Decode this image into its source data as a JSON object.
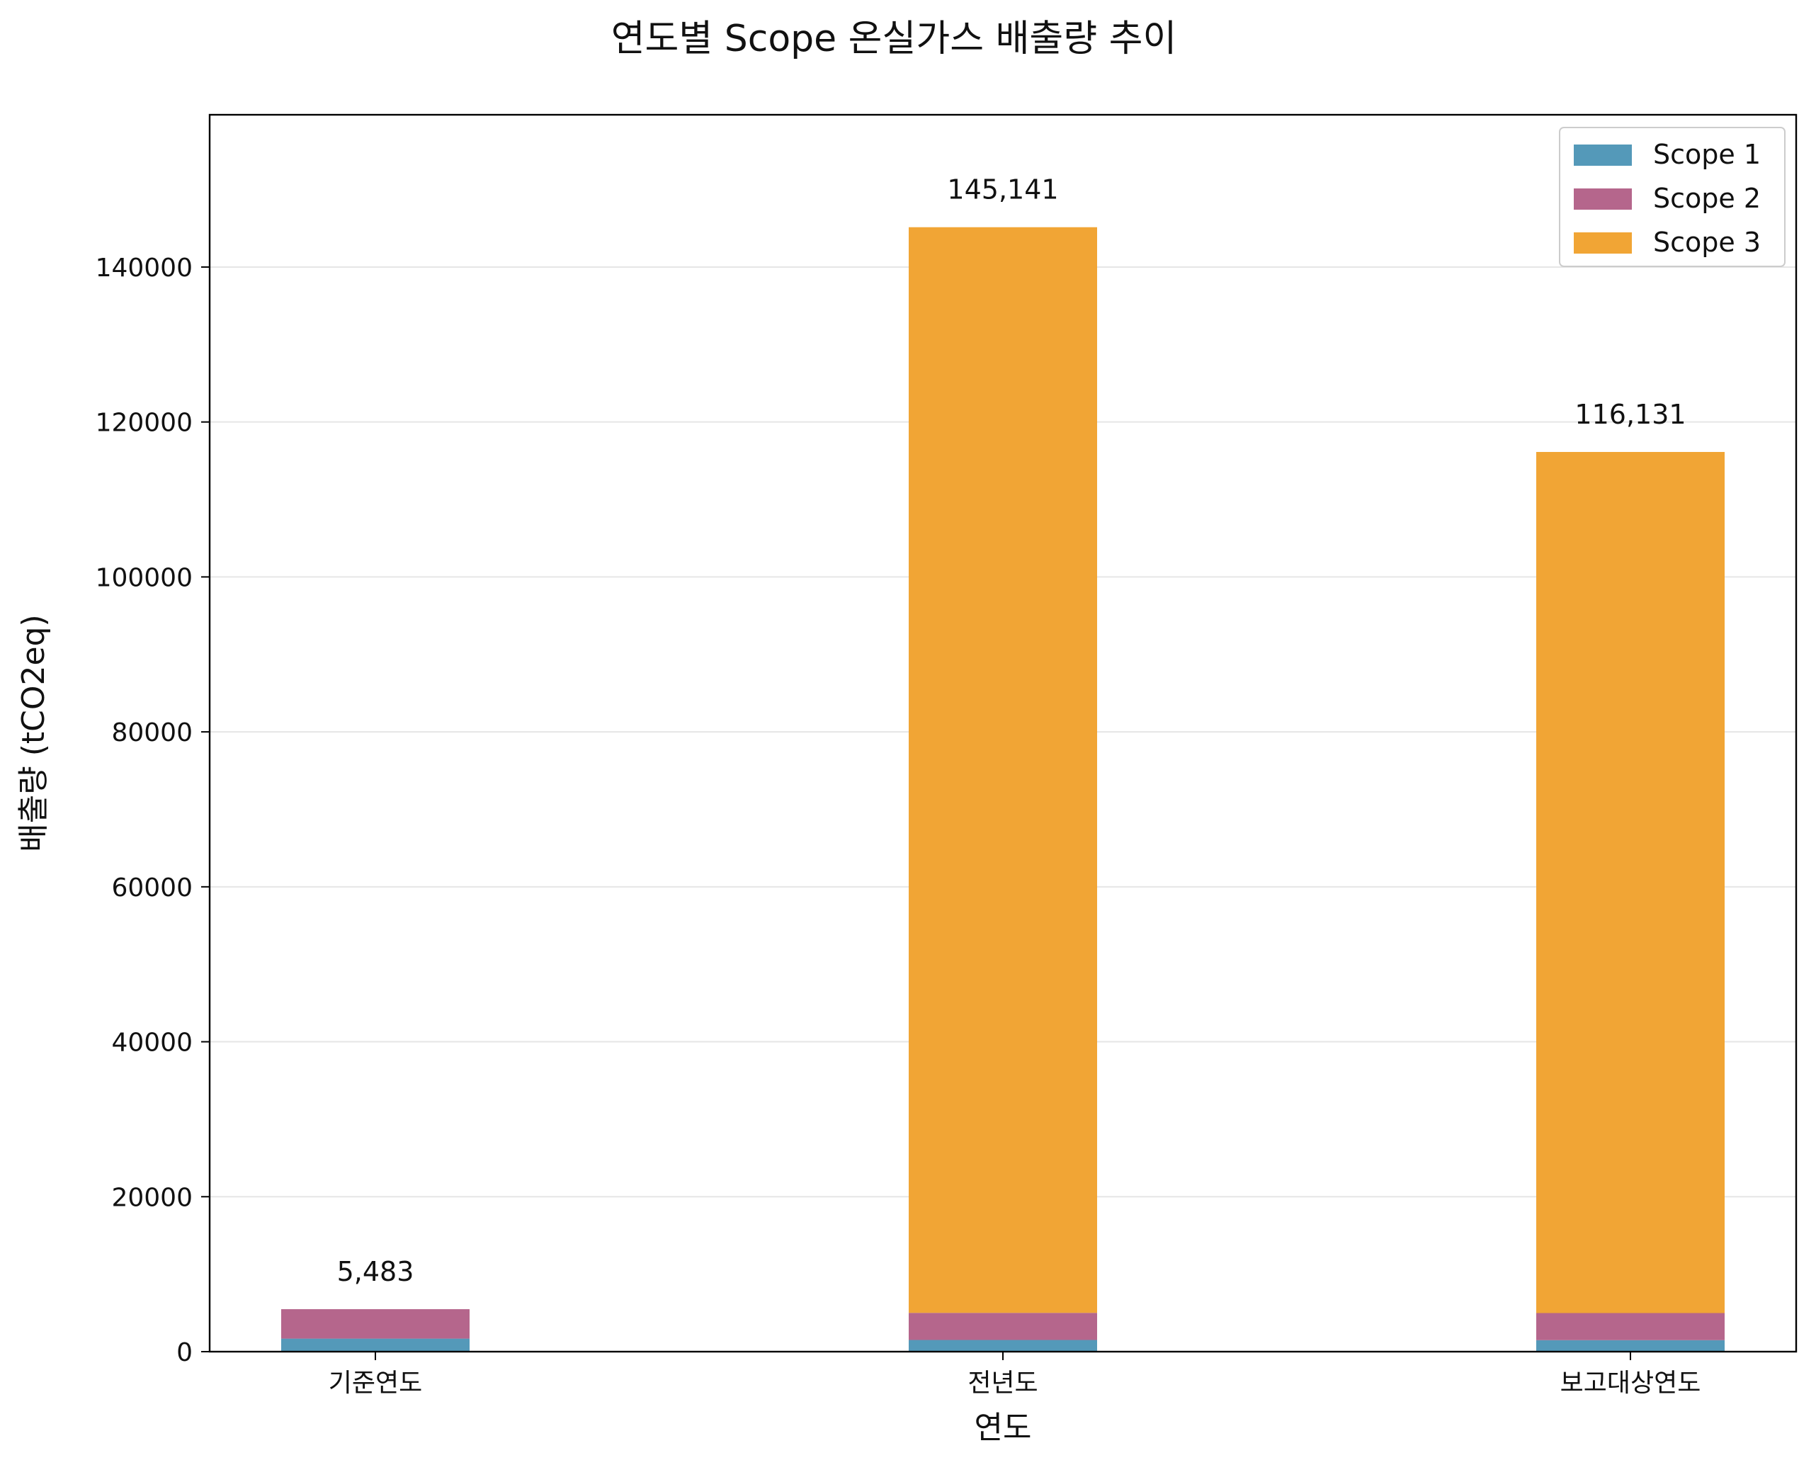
{
  "chart_data": {
    "type": "bar",
    "stacked": true,
    "title": "연도별 Scope 온실가스 배출량 추이",
    "xlabel": "연도",
    "ylabel": "배출량 (tCO2eq)",
    "categories": [
      "기준연도",
      "전년도",
      "보고대상연도"
    ],
    "series": [
      {
        "name": "Scope 1",
        "color": "#5499b9",
        "values": [
          1683,
          1507,
          1483
        ]
      },
      {
        "name": "Scope 2",
        "color": "#b5668c",
        "values": [
          3800,
          3500,
          3500
        ]
      },
      {
        "name": "Scope 3",
        "color": "#f1a535",
        "values": [
          0,
          140134,
          111148
        ]
      }
    ],
    "totals": [
      5483,
      145141,
      116131
    ],
    "total_labels": [
      "5,483",
      "145,141",
      "116,131"
    ],
    "ylim": [
      0,
      159655
    ],
    "yticks": [
      0,
      20000,
      40000,
      60000,
      80000,
      100000,
      120000,
      140000
    ],
    "grid": "horizontal",
    "legend_position": "top-right"
  }
}
